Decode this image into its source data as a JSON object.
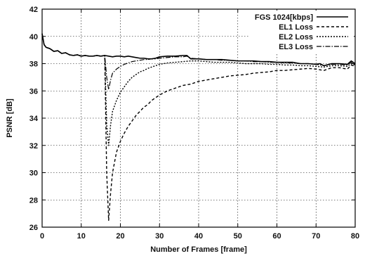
{
  "chart_data": {
    "type": "line",
    "xlabel": "Number of Frames [frame]",
    "ylabel": "PSNR [dB]",
    "xlim": [
      0,
      80
    ],
    "ylim": [
      26,
      42
    ],
    "xticks": [
      0,
      10,
      20,
      30,
      40,
      50,
      60,
      70,
      80
    ],
    "yticks": [
      26,
      28,
      30,
      32,
      34,
      36,
      38,
      40,
      42
    ],
    "grid": true,
    "legend_position": "top-right",
    "series": [
      {
        "name": "FGS 1024[kbps]",
        "style": "solid",
        "points": [
          [
            0,
            40.2
          ],
          [
            0.5,
            39.4
          ],
          [
            1,
            39.2
          ],
          [
            2,
            39.1
          ],
          [
            3,
            38.9
          ],
          [
            4,
            38.95
          ],
          [
            5,
            38.75
          ],
          [
            6,
            38.8
          ],
          [
            7,
            38.65
          ],
          [
            8,
            38.6
          ],
          [
            9,
            38.65
          ],
          [
            10,
            38.55
          ],
          [
            11,
            38.6
          ],
          [
            12,
            38.55
          ],
          [
            13,
            38.55
          ],
          [
            14,
            38.6
          ],
          [
            15,
            38.55
          ],
          [
            16,
            38.6
          ],
          [
            17,
            38.55
          ],
          [
            18,
            38.5
          ],
          [
            19,
            38.55
          ],
          [
            20,
            38.55
          ],
          [
            21,
            38.5
          ],
          [
            22,
            38.55
          ],
          [
            23,
            38.5
          ],
          [
            24,
            38.45
          ],
          [
            25,
            38.4
          ],
          [
            26,
            38.4
          ],
          [
            27,
            38.35
          ],
          [
            28,
            38.35
          ],
          [
            29,
            38.4
          ],
          [
            30,
            38.5
          ],
          [
            32,
            38.55
          ],
          [
            34,
            38.55
          ],
          [
            36,
            38.6
          ],
          [
            37,
            38.6
          ],
          [
            38,
            38.35
          ],
          [
            40,
            38.35
          ],
          [
            42,
            38.3
          ],
          [
            44,
            38.3
          ],
          [
            46,
            38.3
          ],
          [
            48,
            38.25
          ],
          [
            50,
            38.2
          ],
          [
            52,
            38.2
          ],
          [
            54,
            38.2
          ],
          [
            56,
            38.15
          ],
          [
            58,
            38.15
          ],
          [
            60,
            38.1
          ],
          [
            62,
            38.1
          ],
          [
            64,
            38.1
          ],
          [
            66,
            38.0
          ],
          [
            68,
            38.0
          ],
          [
            70,
            37.95
          ],
          [
            71,
            38.0
          ],
          [
            72,
            37.85
          ],
          [
            74,
            38.0
          ],
          [
            76,
            38.0
          ],
          [
            78,
            37.95
          ],
          [
            79,
            38.2
          ],
          [
            80,
            38.0
          ]
        ]
      },
      {
        "name": "EL1 Loss",
        "style": "dashed",
        "points": [
          [
            0,
            40.2
          ],
          [
            0.5,
            39.4
          ],
          [
            1,
            39.2
          ],
          [
            2,
            39.1
          ],
          [
            3,
            38.9
          ],
          [
            4,
            38.95
          ],
          [
            5,
            38.75
          ],
          [
            6,
            38.8
          ],
          [
            7,
            38.65
          ],
          [
            8,
            38.6
          ],
          [
            9,
            38.65
          ],
          [
            10,
            38.55
          ],
          [
            11,
            38.6
          ],
          [
            12,
            38.55
          ],
          [
            13,
            38.55
          ],
          [
            14,
            38.6
          ],
          [
            15,
            38.55
          ],
          [
            16,
            38.6
          ],
          [
            16.5,
            30.0
          ],
          [
            17,
            26.5
          ],
          [
            17.5,
            28.5
          ],
          [
            18,
            30.0
          ],
          [
            19,
            31.5
          ],
          [
            20,
            32.3
          ],
          [
            21,
            32.9
          ],
          [
            22,
            33.4
          ],
          [
            23,
            33.8
          ],
          [
            24,
            34.2
          ],
          [
            25,
            34.5
          ],
          [
            26,
            34.8
          ],
          [
            27,
            35.0
          ],
          [
            28,
            35.3
          ],
          [
            29,
            35.5
          ],
          [
            30,
            35.7
          ],
          [
            32,
            36.0
          ],
          [
            34,
            36.2
          ],
          [
            36,
            36.4
          ],
          [
            38,
            36.5
          ],
          [
            40,
            36.7
          ],
          [
            42,
            36.8
          ],
          [
            44,
            36.9
          ],
          [
            46,
            37.0
          ],
          [
            48,
            37.1
          ],
          [
            50,
            37.15
          ],
          [
            52,
            37.2
          ],
          [
            54,
            37.3
          ],
          [
            56,
            37.35
          ],
          [
            58,
            37.4
          ],
          [
            60,
            37.5
          ],
          [
            62,
            37.5
          ],
          [
            64,
            37.55
          ],
          [
            66,
            37.6
          ],
          [
            68,
            37.65
          ],
          [
            70,
            37.6
          ],
          [
            72,
            37.5
          ],
          [
            74,
            37.7
          ],
          [
            76,
            37.7
          ],
          [
            78,
            37.6
          ],
          [
            79,
            37.9
          ],
          [
            80,
            37.8
          ]
        ]
      },
      {
        "name": "EL2 Loss",
        "style": "dotted",
        "points": [
          [
            0,
            40.2
          ],
          [
            0.5,
            39.4
          ],
          [
            1,
            39.2
          ],
          [
            2,
            39.1
          ],
          [
            3,
            38.9
          ],
          [
            4,
            38.95
          ],
          [
            5,
            38.75
          ],
          [
            6,
            38.8
          ],
          [
            7,
            38.65
          ],
          [
            8,
            38.6
          ],
          [
            9,
            38.65
          ],
          [
            10,
            38.55
          ],
          [
            11,
            38.6
          ],
          [
            12,
            38.55
          ],
          [
            13,
            38.55
          ],
          [
            14,
            38.6
          ],
          [
            15,
            38.55
          ],
          [
            16,
            38.6
          ],
          [
            16.5,
            33.5
          ],
          [
            17,
            32.0
          ],
          [
            17.5,
            33.5
          ],
          [
            18,
            34.5
          ],
          [
            19,
            35.3
          ],
          [
            20,
            35.9
          ],
          [
            21,
            36.3
          ],
          [
            22,
            36.7
          ],
          [
            23,
            37.0
          ],
          [
            24,
            37.2
          ],
          [
            25,
            37.4
          ],
          [
            26,
            37.5
          ],
          [
            27,
            37.65
          ],
          [
            28,
            37.75
          ],
          [
            29,
            37.85
          ],
          [
            30,
            37.95
          ],
          [
            32,
            38.05
          ],
          [
            34,
            38.1
          ],
          [
            36,
            38.15
          ],
          [
            38,
            38.2
          ],
          [
            40,
            38.2
          ],
          [
            42,
            38.15
          ],
          [
            44,
            38.1
          ],
          [
            46,
            38.1
          ],
          [
            48,
            38.1
          ],
          [
            50,
            38.05
          ],
          [
            52,
            38.0
          ],
          [
            54,
            38.0
          ],
          [
            56,
            38.0
          ],
          [
            58,
            37.95
          ],
          [
            60,
            37.95
          ],
          [
            62,
            37.9
          ],
          [
            64,
            37.9
          ],
          [
            66,
            37.85
          ],
          [
            68,
            37.85
          ],
          [
            70,
            37.8
          ],
          [
            72,
            37.75
          ],
          [
            74,
            37.85
          ],
          [
            76,
            37.85
          ],
          [
            78,
            37.8
          ],
          [
            79,
            38.0
          ],
          [
            80,
            37.9
          ]
        ]
      },
      {
        "name": "EL3 Loss",
        "style": "dash-dot",
        "points": [
          [
            0,
            40.2
          ],
          [
            0.5,
            39.4
          ],
          [
            1,
            39.2
          ],
          [
            2,
            39.1
          ],
          [
            3,
            38.9
          ],
          [
            4,
            38.95
          ],
          [
            5,
            38.75
          ],
          [
            6,
            38.8
          ],
          [
            7,
            38.65
          ],
          [
            8,
            38.6
          ],
          [
            9,
            38.65
          ],
          [
            10,
            38.55
          ],
          [
            11,
            38.6
          ],
          [
            12,
            38.55
          ],
          [
            13,
            38.55
          ],
          [
            14,
            38.6
          ],
          [
            15,
            38.55
          ],
          [
            16,
            38.6
          ],
          [
            16.5,
            37.0
          ],
          [
            17,
            36.1
          ],
          [
            17.5,
            36.8
          ],
          [
            18,
            37.3
          ],
          [
            19,
            37.6
          ],
          [
            20,
            37.8
          ],
          [
            21,
            37.95
          ],
          [
            22,
            38.05
          ],
          [
            23,
            38.15
          ],
          [
            24,
            38.2
          ],
          [
            25,
            38.25
          ],
          [
            26,
            38.3
          ],
          [
            27,
            38.3
          ],
          [
            28,
            38.35
          ],
          [
            29,
            38.35
          ],
          [
            30,
            38.4
          ],
          [
            32,
            38.45
          ],
          [
            34,
            38.5
          ],
          [
            36,
            38.5
          ],
          [
            37,
            38.55
          ],
          [
            38,
            38.4
          ],
          [
            40,
            38.35
          ],
          [
            42,
            38.3
          ],
          [
            44,
            38.3
          ],
          [
            46,
            38.25
          ],
          [
            48,
            38.25
          ],
          [
            50,
            38.2
          ],
          [
            52,
            38.2
          ],
          [
            54,
            38.15
          ],
          [
            56,
            38.15
          ],
          [
            58,
            38.1
          ],
          [
            60,
            38.1
          ],
          [
            62,
            38.05
          ],
          [
            64,
            38.05
          ],
          [
            66,
            38.0
          ],
          [
            68,
            38.0
          ],
          [
            70,
            37.95
          ],
          [
            72,
            37.85
          ],
          [
            74,
            37.95
          ],
          [
            76,
            37.95
          ],
          [
            78,
            37.9
          ],
          [
            79,
            38.1
          ],
          [
            80,
            37.95
          ]
        ]
      }
    ]
  }
}
